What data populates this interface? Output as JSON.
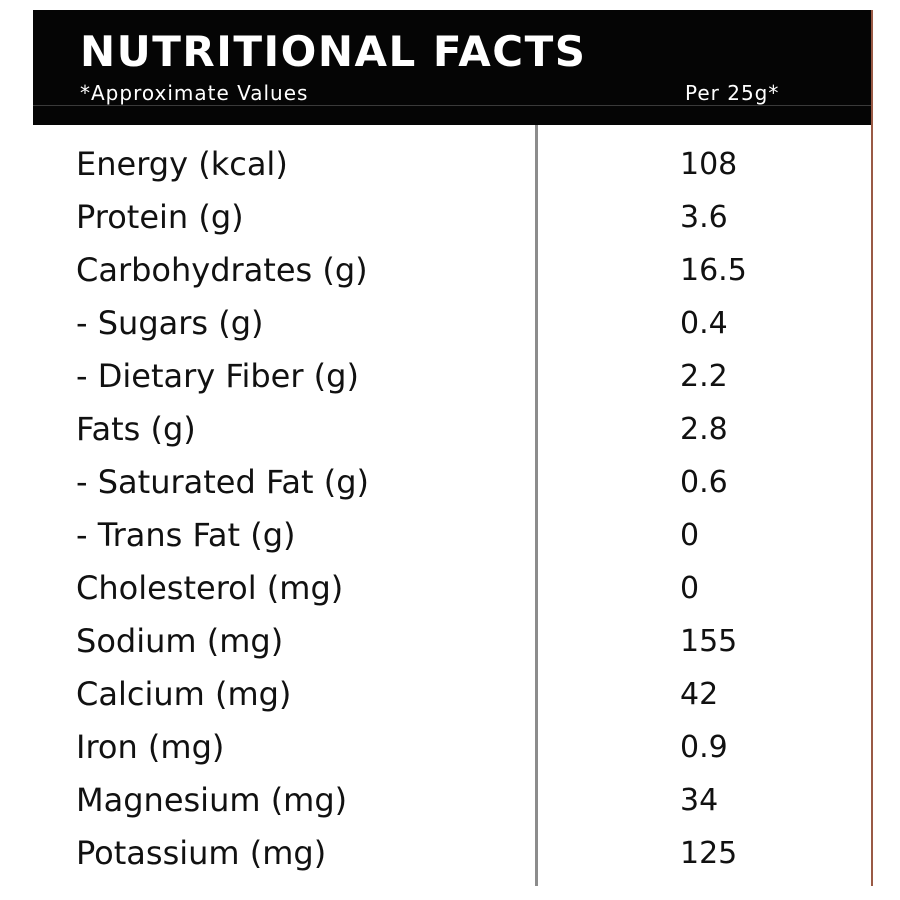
{
  "header": {
    "title": "NUTRITIONAL FACTS",
    "subtitle": "*Approximate Values",
    "per_label": "Per 25g*"
  },
  "nutrients": [
    {
      "name": "Energy (kcal)",
      "value": "108"
    },
    {
      "name": "Protein (g)",
      "value": "3.6"
    },
    {
      "name": "Carbohydrates (g)",
      "value": "16.5"
    },
    {
      "name": "- Sugars (g)",
      "value": "0.4"
    },
    {
      "name": "- Dietary Fiber (g)",
      "value": "2.2"
    },
    {
      "name": "Fats (g)",
      "value": "2.8"
    },
    {
      "name": "- Saturated Fat (g)",
      "value": "0.6"
    },
    {
      "name": "- Trans Fat (g)",
      "value": "0"
    },
    {
      "name": "Cholesterol (mg)",
      "value": "0"
    },
    {
      "name": "Sodium (mg)",
      "value": "155"
    },
    {
      "name": "Calcium (mg)",
      "value": "42"
    },
    {
      "name": "Iron (mg)",
      "value": "0.9"
    },
    {
      "name": "Magnesium (mg)",
      "value": "34"
    },
    {
      "name": "Potassium (mg)",
      "value": "125"
    }
  ],
  "colors": {
    "header_background": "#050505",
    "header_text": "#ffffff",
    "body_text": "#111111",
    "divider": "#8c8c8c",
    "right_border": "#9a5a45"
  }
}
